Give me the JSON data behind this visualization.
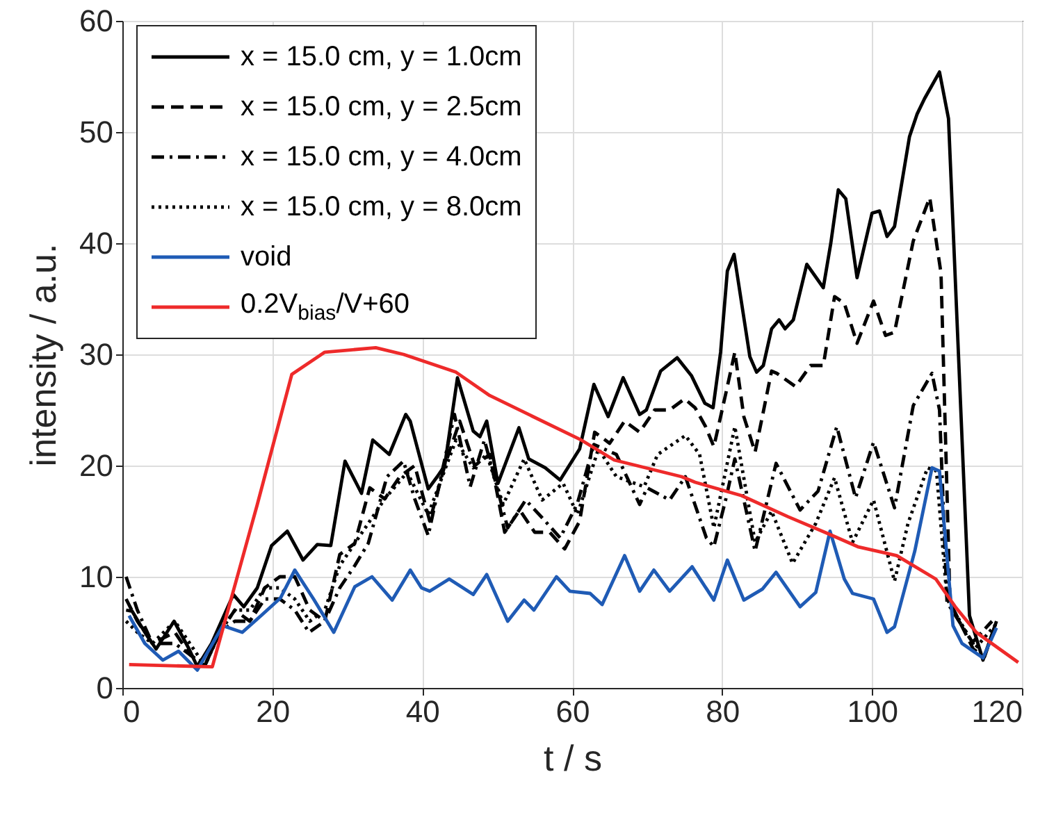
{
  "chart_data": {
    "type": "line",
    "xlabel": "t / s",
    "ylabel": "intensity / a.u.",
    "xlim": [
      0,
      120
    ],
    "xticks": [
      0,
      20,
      40,
      60,
      80,
      100,
      120
    ],
    "ylim": [
      0,
      60
    ],
    "yticks": [
      0,
      10,
      20,
      30,
      40,
      50,
      60
    ],
    "grid": true,
    "legend": "top left",
    "marker": "none",
    "series": [
      {
        "name": "x = 15.0 cm, y = 1.0cm",
        "color": "#000000",
        "line_style": "solid",
        "x": [
          0.5,
          1.3,
          3,
          4.5,
          6.9,
          8.9,
          10,
          11.9,
          14.8,
          16.2,
          18,
          19.9,
          22,
          24.1,
          26,
          27.8,
          29.7,
          31.9,
          33.4,
          35.6,
          37.8,
          38.4,
          40.8,
          42,
          43,
          44.7,
          46.8,
          47.7,
          48.6,
          50.1,
          51,
          52.9,
          54.2,
          56.4,
          58.4,
          61,
          62.9,
          64.8,
          66.8,
          69,
          69.9,
          71.8,
          74,
          75.9,
          77.7,
          78.8,
          79.8,
          80.7,
          81.6,
          83.7,
          84.6,
          85.5,
          86.6,
          87.6,
          88.4,
          89.5,
          91.3,
          93.5,
          94.5,
          95.5,
          96.5,
          98,
          100,
          101,
          102,
          103,
          105,
          106,
          107,
          109,
          110.2,
          113,
          114.8,
          116.6
        ],
        "values": [
          7,
          6.9,
          5,
          3.5,
          6,
          3.5,
          1.9,
          4,
          8.4,
          7.3,
          9,
          12.8,
          14.1,
          11.5,
          12.9,
          12.8,
          20.4,
          17.5,
          22.3,
          21,
          24.6,
          24,
          17.9,
          19,
          20,
          27.9,
          23.1,
          22.6,
          24,
          18.4,
          20,
          23.4,
          20.6,
          19.8,
          18.7,
          21.5,
          27.3,
          24.4,
          27.9,
          24.6,
          25,
          28.5,
          29.7,
          28.1,
          25.6,
          25.2,
          30.2,
          37.5,
          39,
          29.8,
          28.4,
          29,
          32.3,
          33.1,
          32.3,
          33.1,
          38.1,
          36,
          40,
          44.8,
          44,
          36.9,
          42.7,
          42.9,
          40.6,
          41.5,
          49.6,
          51.6,
          53,
          55.4,
          51.2,
          6.5,
          2.5,
          6
        ]
      },
      {
        "name": "x = 15.0 cm, y = 2.5cm",
        "color": "#000000",
        "line_style": "dashed",
        "x": [
          0.5,
          2,
          4,
          7,
          9,
          11,
          13,
          15,
          17,
          19,
          21,
          23,
          25,
          27,
          29,
          31,
          33,
          35,
          37,
          39,
          41,
          43,
          45,
          47,
          49,
          51,
          53,
          55,
          57,
          59,
          61,
          63,
          65,
          67,
          69,
          71,
          73,
          75,
          76.4,
          77.8,
          78.9,
          80.5,
          81.7,
          82.9,
          84.4,
          86.6,
          87.3,
          89.8,
          91.8,
          93.5,
          95,
          96.3,
          98,
          100.2,
          101.8,
          103,
          105.5,
          107.7,
          109.2,
          110.4,
          113.5,
          115,
          116.5
        ],
        "values": [
          8,
          6,
          4,
          5,
          3,
          2,
          5,
          7,
          6,
          9,
          10,
          10,
          7,
          6,
          12,
          13,
          18,
          17,
          19,
          20,
          15,
          20,
          24,
          20,
          21,
          14,
          16,
          14,
          14,
          12.5,
          15,
          23,
          22,
          24,
          23,
          25,
          25,
          26,
          25.2,
          23.5,
          21.7,
          26.5,
          30.2,
          24.4,
          21.2,
          28.5,
          28.3,
          27.1,
          29,
          29,
          35.2,
          34.6,
          31,
          34.8,
          31.7,
          32,
          40.2,
          44.1,
          37.3,
          7.7,
          3.5,
          2.8,
          5.7
        ]
      },
      {
        "name": "x = 15.0 cm, y = 4.0cm",
        "color": "#000000",
        "line_style": "dashdot",
        "x": [
          0.5,
          2,
          4,
          7,
          9,
          11,
          13,
          15,
          17,
          19,
          21,
          23,
          24.9,
          27,
          29,
          31,
          32.8,
          35.3,
          37.5,
          39,
          40.8,
          44.3,
          46.4,
          48.3,
          51.4,
          53.8,
          56,
          58.4,
          60.7,
          62.9,
          65.9,
          69,
          70,
          73,
          75.1,
          77.9,
          78.9,
          80.5,
          81.7,
          84.4,
          87.2,
          90.4,
          92.8,
          95.3,
          97.8,
          100.2,
          103,
          105.5,
          108,
          109,
          110,
          113.4,
          116
        ],
        "values": [
          10,
          7,
          4,
          4,
          3,
          2,
          5,
          6,
          6,
          8,
          8,
          7,
          5,
          6,
          9,
          11,
          13,
          19,
          20.4,
          17,
          13.7,
          24.6,
          18.1,
          22.3,
          14.4,
          16.9,
          15.3,
          13.5,
          16.6,
          21.9,
          21,
          16.5,
          18,
          16.9,
          19,
          13.5,
          12.7,
          17,
          20.6,
          12.3,
          20.2,
          16,
          17.7,
          23.5,
          17.1,
          22.1,
          16.2,
          25.4,
          28.3,
          25,
          7.7,
          4.1,
          6
        ]
      },
      {
        "name": "x = 15.0 cm, y = 8.0cm",
        "color": "#000000",
        "line_style": "dotted",
        "x": [
          0.5,
          2,
          4,
          7,
          9,
          11,
          13,
          15,
          17,
          19,
          21,
          23,
          25,
          27,
          29,
          31,
          33,
          35,
          38,
          40.8,
          44.5,
          46.8,
          48.6,
          50.8,
          53.6,
          56,
          58.8,
          60.7,
          63.5,
          65.9,
          69.6,
          71.4,
          75.1,
          77,
          78.9,
          81.7,
          84.4,
          86.6,
          89.4,
          92.5,
          95,
          97.4,
          100.2,
          103,
          104.8,
          107.4,
          108.6,
          110,
          113.8,
          116.5
        ],
        "values": [
          6,
          5,
          4,
          6,
          4,
          2,
          5,
          7,
          7,
          9,
          9,
          8,
          6,
          7,
          11,
          13,
          15,
          17,
          19.4,
          15.6,
          22.3,
          19.8,
          21,
          16.5,
          20.6,
          16.9,
          18.4,
          15.6,
          21.5,
          19,
          18.1,
          21,
          22.7,
          21,
          14.4,
          23.5,
          13.1,
          15.9,
          11.2,
          14.8,
          18.9,
          13.1,
          16.9,
          9.6,
          14.8,
          19.8,
          19.5,
          8,
          3.6,
          5.7
        ]
      },
      {
        "name": "void",
        "color": "#1f5bb5",
        "line_style": "solid",
        "x": [
          0.9,
          3,
          5.4,
          7.5,
          10,
          13.4,
          16,
          18.5,
          21.1,
          23,
          25.5,
          28.2,
          31,
          33.3,
          36,
          38.4,
          39.9,
          41,
          43.6,
          46.8,
          48.6,
          51.4,
          53.6,
          54.9,
          57.9,
          59.7,
          62.4,
          64,
          67,
          69,
          70.9,
          73,
          76,
          78.9,
          80.7,
          82.9,
          85.4,
          87.2,
          90.4,
          92.5,
          94.4,
          96.3,
          97.4,
          100.2,
          102,
          103,
          105.7,
          108,
          109,
          110.8,
          112,
          114.8,
          116.6
        ],
        "values": [
          6.5,
          4,
          2.5,
          3.3,
          1.6,
          5.6,
          5,
          6.5,
          8.1,
          10.6,
          8,
          5,
          9.1,
          10,
          7.9,
          10.6,
          9,
          8.7,
          9.8,
          8.4,
          10.2,
          6,
          7.9,
          7,
          10,
          8.7,
          8.5,
          7.5,
          11.9,
          8.7,
          10.6,
          8.7,
          10.9,
          7.9,
          11.5,
          7.9,
          8.9,
          10.4,
          7.3,
          8.6,
          14.1,
          9.8,
          8.5,
          8,
          5,
          5.5,
          12.3,
          19.8,
          19.5,
          5.6,
          4,
          2.7,
          5.4
        ]
      },
      {
        "name": "0.2V$_{bias}$/V+60",
        "color": "#ee2a2a",
        "line_style": "solid",
        "x": [
          0.9,
          12,
          18,
          22.6,
          27,
          33.8,
          37.5,
          44.5,
          49,
          61.2,
          65.6,
          74.6,
          76.4,
          82.6,
          88.8,
          94.4,
          98.1,
          103.3,
          108.5,
          111.1,
          113.9,
          119.5
        ],
        "values": [
          2.1,
          1.9,
          16.5,
          28.2,
          30.2,
          30.6,
          30,
          28.4,
          26.3,
          22.3,
          20.5,
          19,
          18.5,
          17.3,
          15.4,
          13.8,
          12.7,
          11.9,
          9.8,
          7.3,
          5,
          2.3
        ]
      }
    ]
  }
}
